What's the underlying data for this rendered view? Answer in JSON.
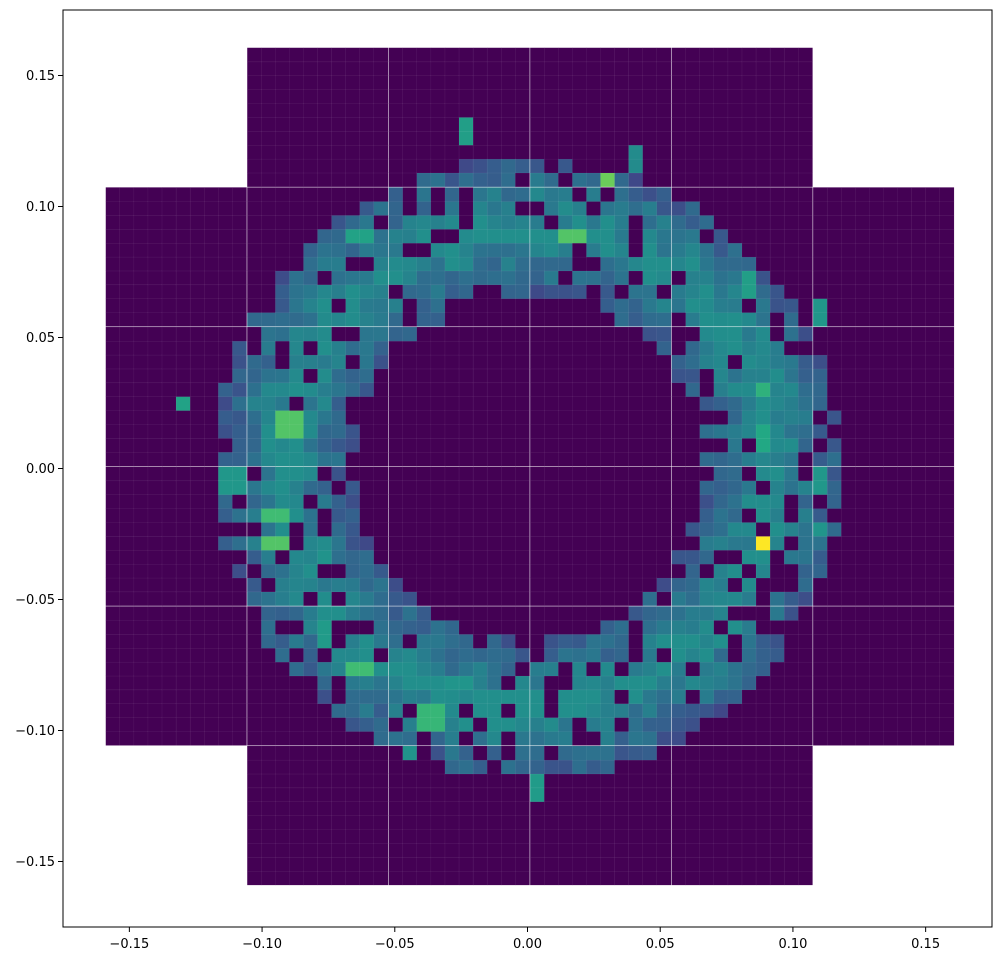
{
  "chart_data": {
    "type": "heatmap",
    "xlabel": "",
    "ylabel": "",
    "xlim": [
      -0.175,
      0.175
    ],
    "ylim": [
      -0.175,
      0.175
    ],
    "xticks": [
      -0.15,
      -0.1,
      -0.05,
      0.0,
      0.05,
      0.1,
      0.15
    ],
    "xtick_labels": [
      "−0.15",
      "−0.10",
      "−0.05",
      "0.00",
      "0.05",
      "0.10",
      "0.15"
    ],
    "yticks": [
      -0.15,
      -0.1,
      -0.05,
      0.0,
      0.05,
      0.1,
      0.15
    ],
    "ytick_labels": [
      "−0.15",
      "−0.10",
      "−0.05",
      "0.00",
      "0.05",
      "0.10",
      "0.15"
    ],
    "grid": false,
    "colormap": "viridis",
    "background_color": "#440154",
    "cell_size": 0.0053,
    "chip_size": 0.0513,
    "chip_pitch": 0.0533,
    "chip_columns_per_row": [
      [
        -2,
        1
      ],
      [
        -3,
        2
      ],
      [
        -3,
        2
      ],
      [
        -3,
        2
      ],
      [
        -3,
        2
      ],
      [
        -2,
        1
      ]
    ],
    "chip_rows": [
      2,
      1,
      0,
      -1,
      -2,
      -3
    ],
    "ring": {
      "comment_free": true,
      "radius": 0.092,
      "width": 0.026,
      "peak_value": 1.0
    },
    "hot_cells": [
      [
        0.089,
        -0.029,
        1.0
      ],
      [
        0.029,
        0.111,
        0.88
      ],
      [
        0.016,
        0.088,
        0.85
      ],
      [
        -0.09,
        0.018,
        0.85
      ],
      [
        -0.094,
        -0.029,
        0.85
      ],
      [
        -0.094,
        -0.017,
        0.82
      ],
      [
        -0.064,
        -0.077,
        0.82
      ],
      [
        -0.037,
        -0.095,
        0.8
      ],
      [
        0.089,
        0.03,
        0.78
      ],
      [
        0.089,
        0.011,
        0.75
      ],
      [
        -0.131,
        0.024,
        0.72
      ],
      [
        -0.064,
        0.089,
        0.72
      ],
      [
        0.084,
        0.071,
        0.7
      ],
      [
        -0.022,
        0.129,
        0.7
      ],
      [
        0.004,
        -0.123,
        0.68
      ],
      [
        -0.076,
        -0.063,
        0.68
      ],
      [
        0.111,
        -0.005,
        0.66
      ],
      [
        0.111,
        -0.023,
        0.65
      ],
      [
        -0.111,
        -0.005,
        0.66
      ],
      [
        0.111,
        0.059,
        0.66
      ],
      [
        -0.026,
        -0.083,
        0.65
      ],
      [
        -0.076,
        -0.035,
        0.64
      ],
      [
        -0.045,
        -0.109,
        0.64
      ],
      [
        0.081,
        0.029,
        0.6
      ],
      [
        0.042,
        0.118,
        0.6
      ],
      [
        -0.076,
        0.053,
        0.6
      ]
    ]
  }
}
